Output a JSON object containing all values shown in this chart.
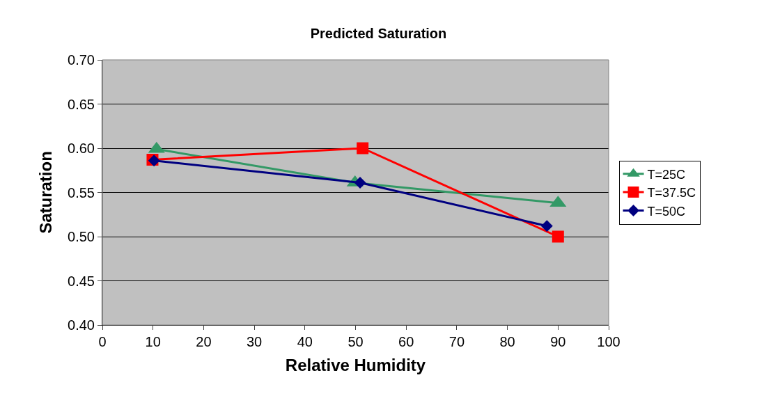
{
  "chart_data": {
    "type": "line",
    "title": "Predicted Saturation",
    "xlabel": "Relative Humidity",
    "ylabel": "Saturation",
    "xlim": [
      0,
      100
    ],
    "xticks": [
      0,
      10,
      20,
      30,
      40,
      50,
      60,
      70,
      80,
      90,
      100
    ],
    "ylim": [
      0.4,
      0.7
    ],
    "yticks": [
      {
        "value": 0.4,
        "label": "0.40"
      },
      {
        "value": 0.45,
        "label": "0.45"
      },
      {
        "value": 0.5,
        "label": "0.50"
      },
      {
        "value": 0.55,
        "label": "0.55"
      },
      {
        "value": 0.6,
        "label": "0.60"
      },
      {
        "value": 0.65,
        "label": "0.65"
      },
      {
        "value": 0.7,
        "label": "0.70"
      }
    ],
    "grid": "y",
    "legend": "right",
    "series": [
      {
        "name": "T=25C",
        "color": "#339966",
        "marker": "triangle",
        "x": [
          10.7,
          49.9,
          90
        ],
        "values": [
          0.599,
          0.561,
          0.538
        ]
      },
      {
        "name": "T=37.5C",
        "color": "#ff0000",
        "marker": "square",
        "x": [
          9.9,
          51.4,
          90
        ],
        "values": [
          0.587,
          0.6,
          0.5
        ]
      },
      {
        "name": "T=50C",
        "color": "#000080",
        "marker": "diamond",
        "x": [
          10.2,
          50.9,
          87.8
        ],
        "values": [
          0.586,
          0.561,
          0.512
        ]
      }
    ]
  }
}
